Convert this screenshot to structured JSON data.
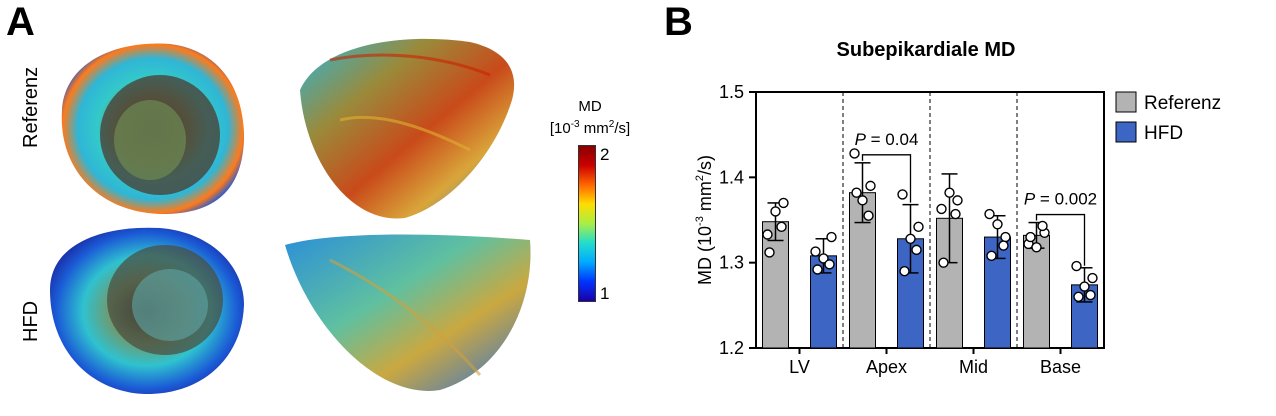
{
  "panelA": {
    "letter": "A",
    "rows": [
      "Referenz",
      "HFD"
    ],
    "colorbar": {
      "title": "MD",
      "unit": "[10",
      "unit_exp": "-3",
      "unit_mid": " mm",
      "unit_exp2": "2",
      "unit_end": "/s]",
      "max_label": "2",
      "min_label": "1",
      "colors": [
        "#1a00a8",
        "#0033ff",
        "#00aaff",
        "#22ddcc",
        "#aaee44",
        "#ffdd00",
        "#ff6600",
        "#cc0000",
        "#880000"
      ]
    }
  },
  "panelB": {
    "letter": "B"
  },
  "chart_data": {
    "type": "bar",
    "title": "Subepikardiale MD",
    "ylabel_main": "MD (10",
    "ylabel_exp": "-3",
    "ylabel_mid": " mm",
    "ylabel_exp2": "2",
    "ylabel_end": "/s)",
    "ylim": [
      1.2,
      1.5
    ],
    "yticks": [
      "1.2",
      "1.3",
      "1.4",
      "1.5"
    ],
    "categories": [
      "LV",
      "Apex",
      "Mid",
      "Base"
    ],
    "series": [
      {
        "name": "Referenz",
        "color": "#b3b3b3",
        "values": [
          1.348,
          1.382,
          1.352,
          1.332
        ],
        "err": [
          0.022,
          0.035,
          0.052,
          0.015
        ],
        "points": [
          [
            1.333,
            1.37,
            1.36,
            1.342,
            1.312
          ],
          [
            1.428,
            1.39,
            1.373,
            1.355,
            1.382
          ],
          [
            1.363,
            1.373,
            1.382,
            1.357,
            1.3
          ],
          [
            1.322,
            1.335,
            1.318,
            1.343,
            1.33
          ]
        ]
      },
      {
        "name": "HFD",
        "color": "#3c65c4",
        "values": [
          1.308,
          1.328,
          1.33,
          1.274
        ],
        "err": [
          0.02,
          0.04,
          0.025,
          0.02
        ],
        "points": [
          [
            1.313,
            1.33,
            1.305,
            1.298,
            1.292
          ],
          [
            1.38,
            1.342,
            1.328,
            1.315,
            1.29
          ],
          [
            1.357,
            1.33,
            1.345,
            1.32,
            1.308
          ],
          [
            1.296,
            1.282,
            1.272,
            1.262,
            1.26
          ]
        ]
      }
    ],
    "annotations": [
      {
        "category": "Apex",
        "text_italic": "P",
        "text": " = 0.04"
      },
      {
        "category": "Base",
        "text_italic": "P",
        "text": " = 0.002"
      }
    ],
    "legend_position": "right"
  }
}
